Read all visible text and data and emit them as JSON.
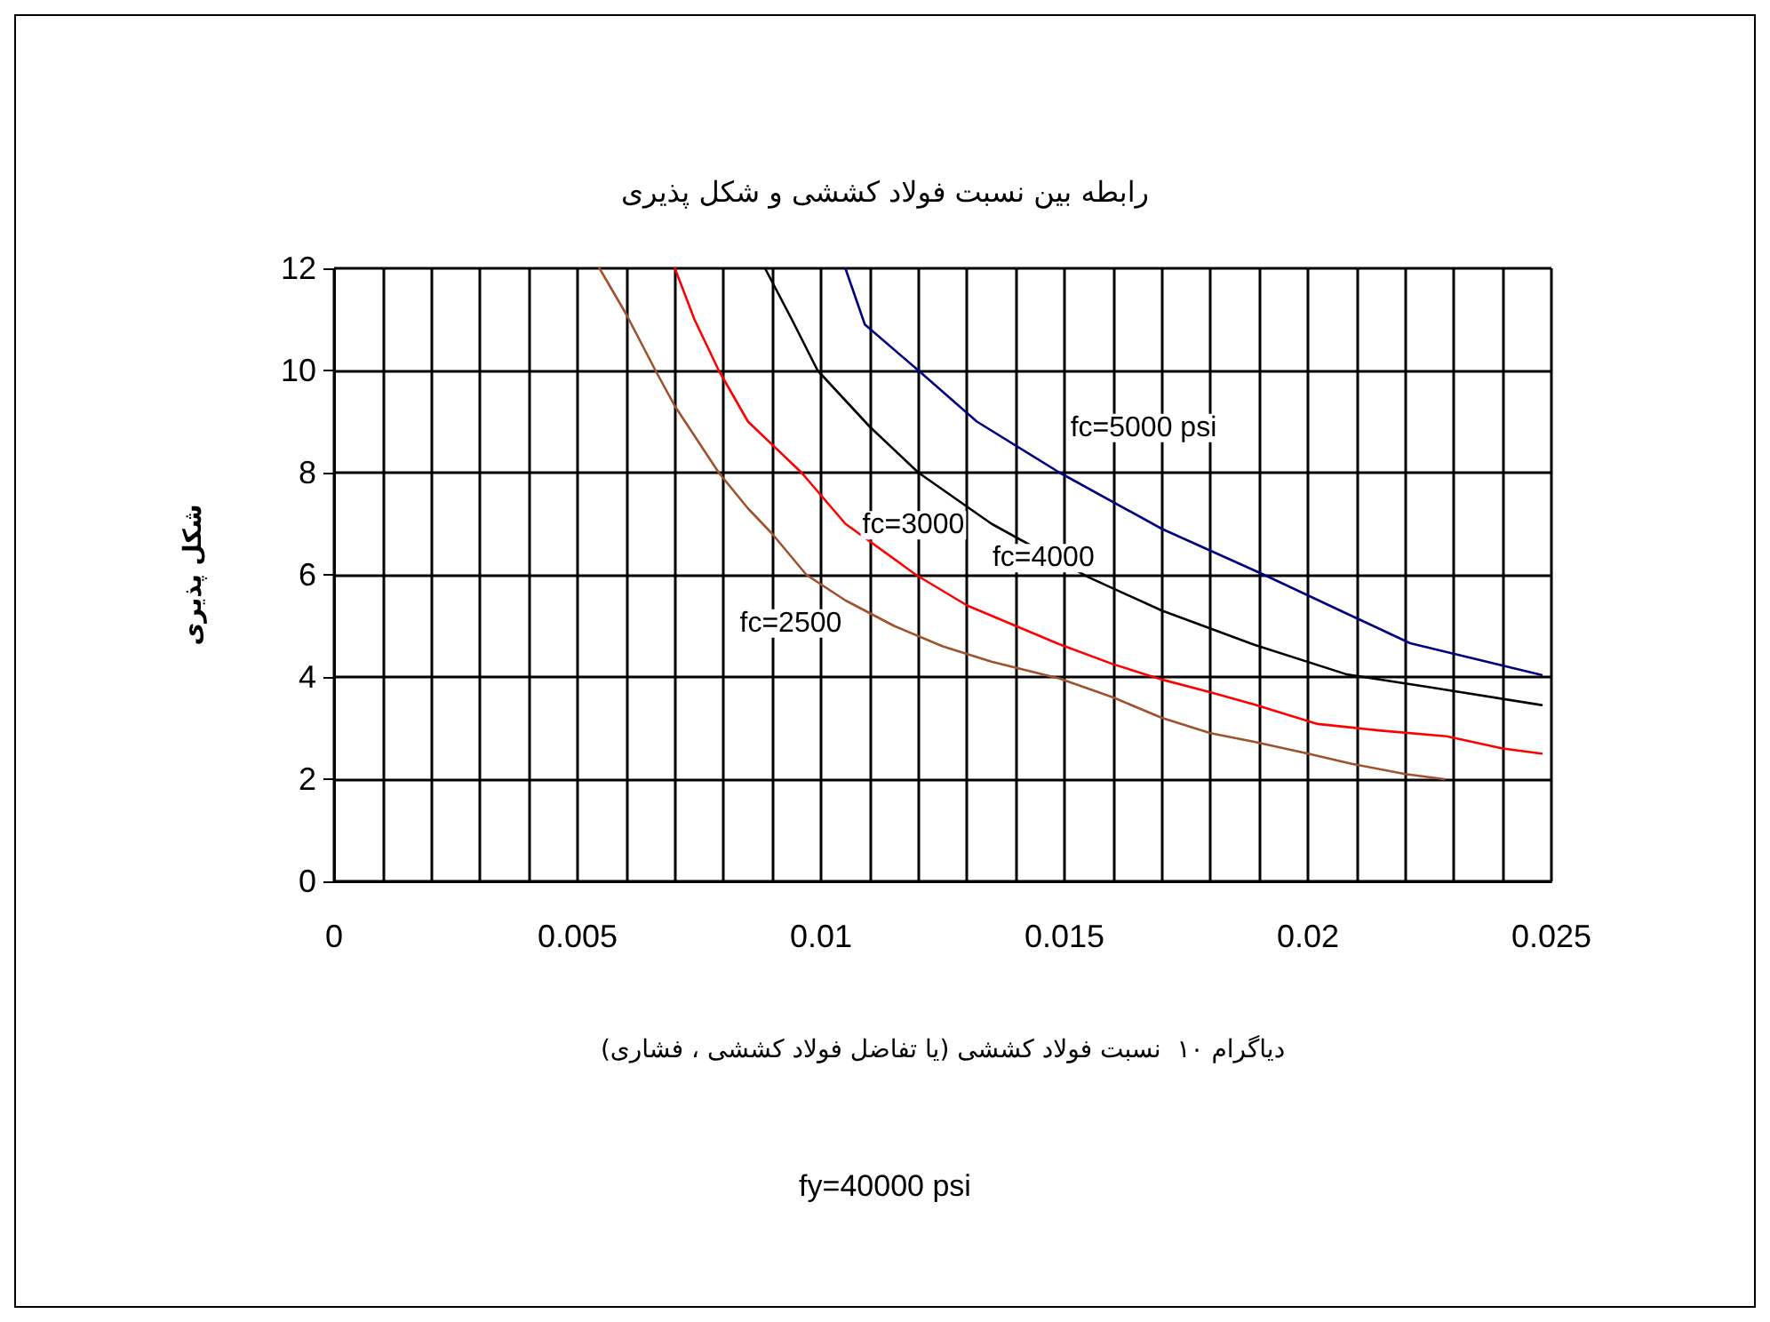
{
  "chart_data": {
    "type": "line",
    "title": "رابطه بین نسبت فولاد کششی و شکل پذیری",
    "xlabel": "دیاگرام ۱۰  نسبت فولاد کششی (یا تفاضل فولاد کششی ، فشاری)",
    "ylabel": "شکل پذیری",
    "series": [
      {
        "name": "fc=2500",
        "color": "#a0522d",
        "x": [
          0.00545,
          0.006,
          0.0066,
          0.007,
          0.0079,
          0.0085,
          0.009,
          0.0097,
          0.0105,
          0.0115,
          0.0125,
          0.0135,
          0.0149,
          0.016,
          0.017,
          0.018,
          0.0189,
          0.02,
          0.0209,
          0.022,
          0.0228
        ],
        "values": [
          12,
          11.1,
          10,
          9.3,
          8,
          7.3,
          6.8,
          6,
          5.5,
          5,
          4.6,
          4.3,
          3.97,
          3.6,
          3.2,
          2.9,
          2.73,
          2.5,
          2.3,
          2.1,
          2.0
        ]
      },
      {
        "name": "fc=3000",
        "color": "#ff0000",
        "x": [
          0.007,
          0.0074,
          0.0079,
          0.0085,
          0.0096,
          0.0105,
          0.01195,
          0.013,
          0.0149,
          0.016,
          0.017,
          0.018,
          0.0189,
          0.0202,
          0.0215,
          0.02285,
          0.024,
          0.0248
        ],
        "values": [
          12,
          11,
          10,
          9,
          8,
          7,
          6,
          5.4,
          4.64,
          4.25,
          3.95,
          3.7,
          3.46,
          3.08,
          2.95,
          2.84,
          2.6,
          2.5
        ]
      },
      {
        "name": "fc=4000",
        "color": "#000000",
        "x": [
          0.00885,
          0.0094,
          0.00993,
          0.011,
          0.012,
          0.0135,
          0.0155,
          0.017,
          0.0189,
          0.0208,
          0.0225,
          0.0248
        ],
        "values": [
          12,
          11,
          10,
          8.9,
          8,
          7,
          5.95,
          5.3,
          4.63,
          4.05,
          3.8,
          3.45
        ]
      },
      {
        "name": "fc=5000 psi",
        "color": "#000080",
        "x": [
          0.0105,
          0.0109,
          0.012,
          0.0132,
          0.0149,
          0.017,
          0.0191,
          0.0208,
          0.0221,
          0.0248
        ],
        "values": [
          12,
          10.9,
          10,
          9,
          8,
          6.9,
          6,
          5.24,
          4.66,
          4.04
        ]
      }
    ],
    "xlim": [
      0,
      0.025
    ],
    "xticks": [
      0,
      {
        "value": 0.001,
        "label": null
      },
      {
        "value": 0.002,
        "label": null
      },
      {
        "value": 0.003,
        "label": null
      },
      {
        "value": 0.004,
        "label": null
      },
      0.005,
      {
        "value": 0.006,
        "label": null
      },
      {
        "value": 0.007,
        "label": null
      },
      {
        "value": 0.008,
        "label": null
      },
      {
        "value": 0.009,
        "label": null
      },
      0.01,
      {
        "value": 0.011,
        "label": null
      },
      {
        "value": 0.012,
        "label": null
      },
      {
        "value": 0.013,
        "label": null
      },
      {
        "value": 0.014,
        "label": null
      },
      0.015,
      {
        "value": 0.016,
        "label": null
      },
      {
        "value": 0.017,
        "label": null
      },
      {
        "value": 0.018,
        "label": null
      },
      {
        "value": 0.019,
        "label": null
      },
      0.02,
      {
        "value": 0.021,
        "label": null
      },
      {
        "value": 0.022,
        "label": null
      },
      {
        "value": 0.023,
        "label": null
      },
      {
        "value": 0.024,
        "label": null
      },
      0.025
    ],
    "ylim": [
      0,
      12
    ],
    "yticks": [
      0,
      2,
      4,
      6,
      8,
      10,
      12
    ],
    "grid": true,
    "marker": "none",
    "line_style": "solid",
    "annotations": [
      "fy=40000 psi"
    ]
  }
}
